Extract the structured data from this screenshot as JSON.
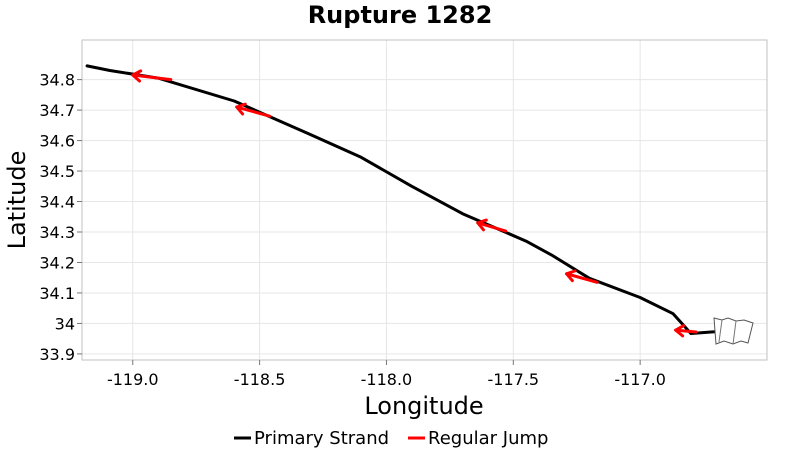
{
  "chart_data": {
    "type": "line",
    "title": "Rupture 1282",
    "xlabel": "Longitude",
    "ylabel": "Latitude",
    "xlim": [
      -119.2,
      -116.5
    ],
    "ylim": [
      33.88,
      34.93
    ],
    "xticks": [
      -119.0,
      -118.5,
      -118.0,
      -117.5,
      -117.0
    ],
    "xtick_labels": [
      "-119.0",
      "-118.5",
      "-118.0",
      "-117.5",
      "-117.0"
    ],
    "yticks": [
      33.9,
      34.0,
      34.1,
      34.2,
      34.3,
      34.4,
      34.5,
      34.6,
      34.7,
      34.8
    ],
    "ytick_labels": [
      "33.9",
      "34",
      "34.1",
      "34.2",
      "34.3",
      "34.4",
      "34.5",
      "34.6",
      "34.7",
      "34.8"
    ],
    "grid": true,
    "legend_position": "bottom",
    "series": [
      {
        "name": "Primary Strand",
        "color": "#000000",
        "x": [
          -119.18,
          -119.09,
          -118.9,
          -118.6,
          -118.3,
          -118.1,
          -117.9,
          -117.7,
          -117.45,
          -117.35,
          -117.2,
          -117.0,
          -116.87,
          -116.83,
          -116.8,
          -116.72,
          -116.68,
          -116.66
        ],
        "y": [
          34.845,
          34.83,
          34.805,
          34.73,
          34.62,
          34.545,
          34.45,
          34.36,
          34.27,
          34.225,
          34.148,
          34.085,
          34.032,
          33.995,
          33.967,
          33.972,
          33.974,
          33.96
        ]
      },
      {
        "name": "Regular Jump",
        "color": "#ff0000",
        "segments": [
          {
            "x": [
              -118.85,
              -119.0
            ],
            "y": [
              34.8,
              34.815
            ]
          },
          {
            "x": [
              -118.46,
              -118.59
            ],
            "y": [
              34.68,
              34.71
            ]
          },
          {
            "x": [
              -117.53,
              -117.64
            ],
            "y": [
              34.303,
              34.33
            ]
          },
          {
            "x": [
              -117.17,
              -117.29
            ],
            "y": [
              34.135,
              34.163
            ]
          },
          {
            "x": [
              -116.78,
              -116.86
            ],
            "y": [
              33.972,
              33.978
            ]
          }
        ]
      }
    ]
  }
}
